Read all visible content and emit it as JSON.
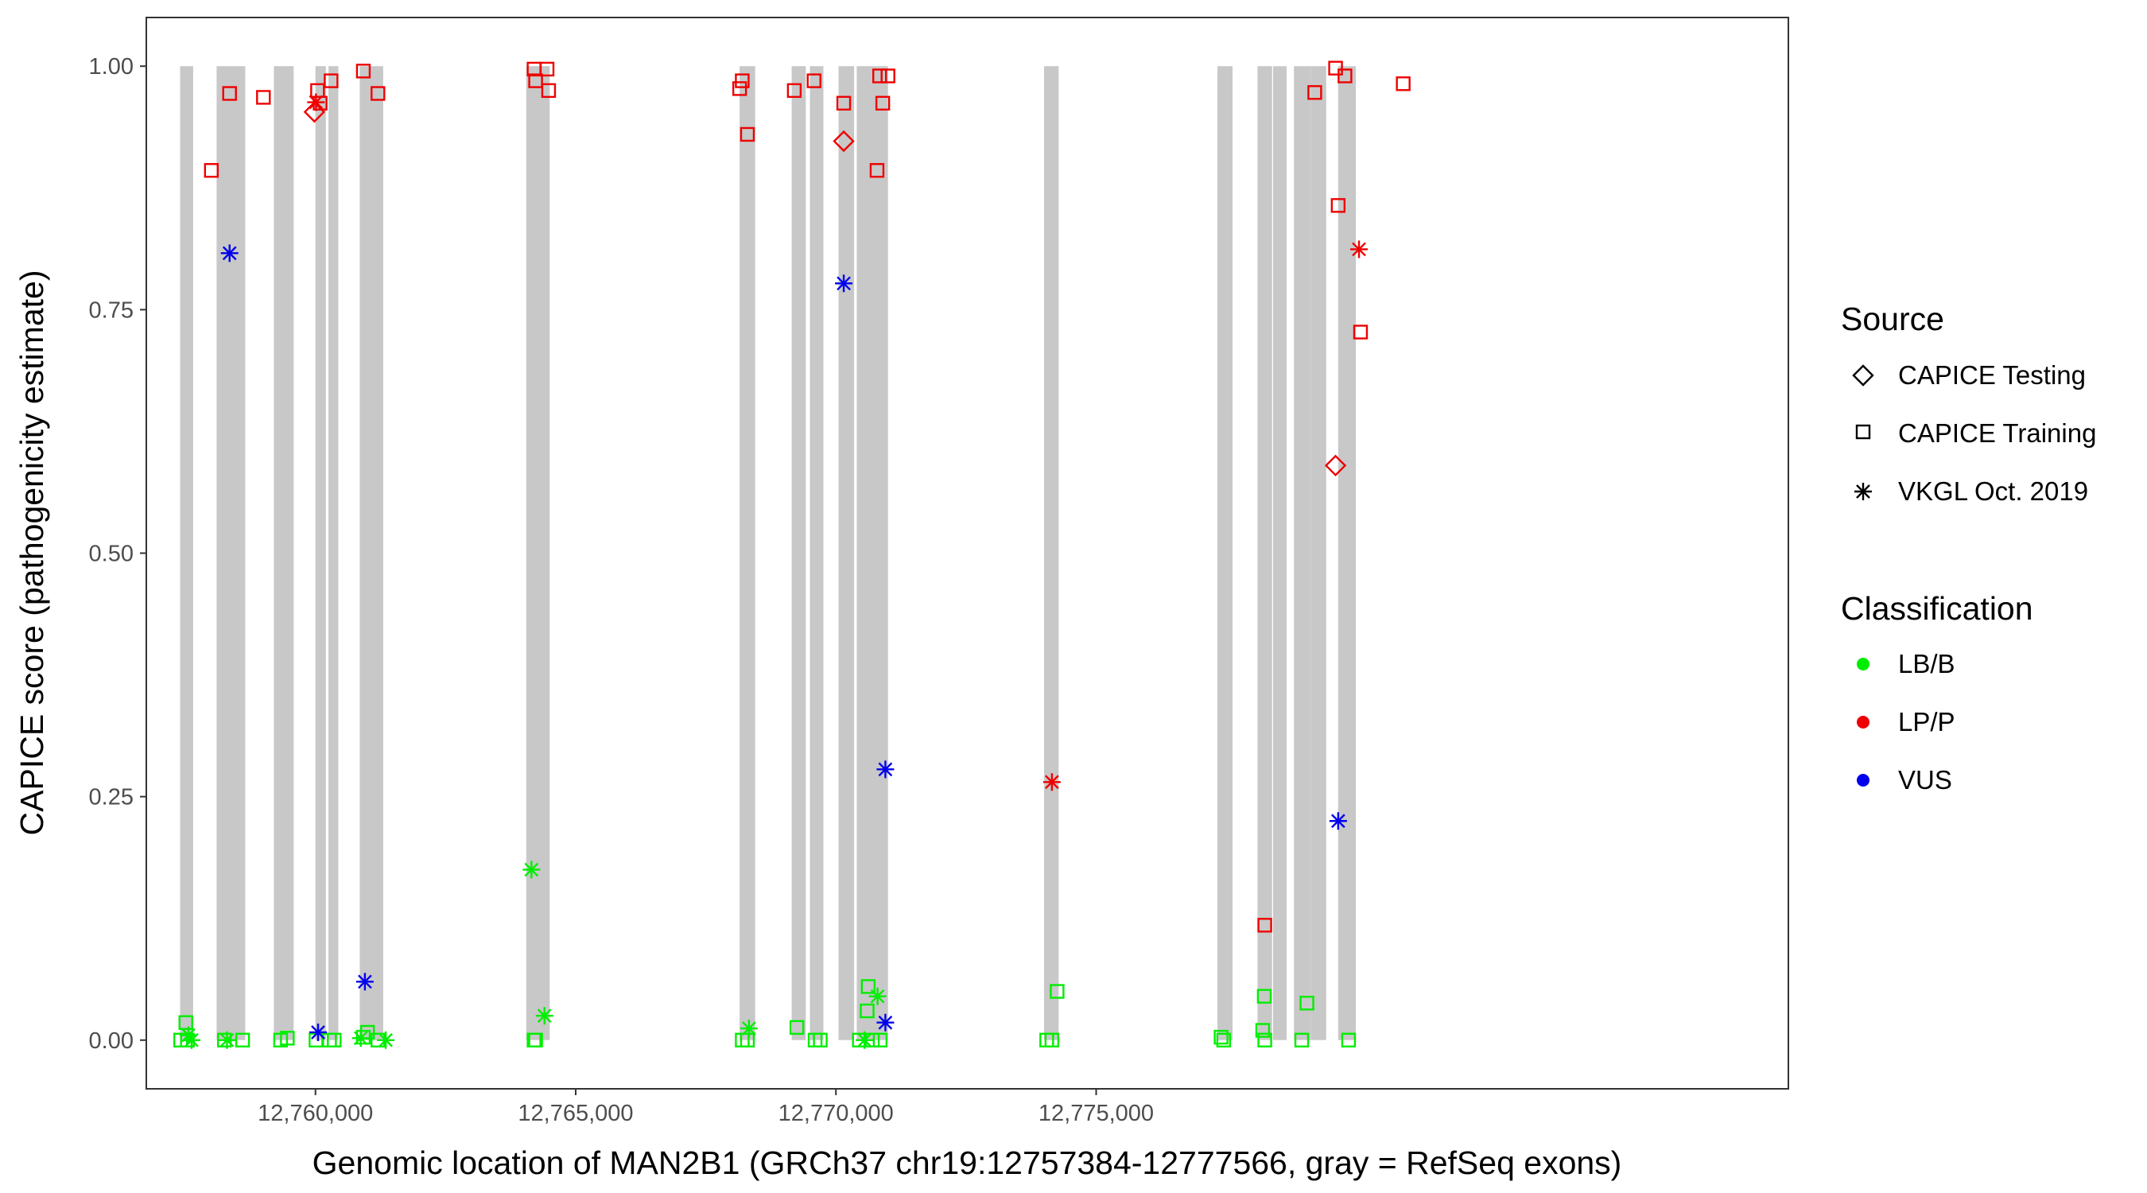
{
  "chart_data": {
    "type": "scatter",
    "title": "",
    "xlabel": "Genomic location of MAN2B1 (GRCh37 chr19:12757384-12777566, gray = RefSeq exons)",
    "ylabel": "CAPICE score (pathogenicity estimate)",
    "xlim": [
      12756750,
      12788300
    ],
    "ylim": [
      -0.05,
      1.05
    ],
    "x_ticks": [
      12760000,
      12765000,
      12770000,
      12775000
    ],
    "x_tick_labels": [
      "12,760,000",
      "12,765,000",
      "12,770,000",
      "12,775,000"
    ],
    "y_ticks": [
      0,
      0.25,
      0.5,
      0.75,
      1.0
    ],
    "y_tick_labels": [
      "0.00",
      "0.25",
      "0.50",
      "0.75",
      "1.00"
    ],
    "grid": false,
    "exons": [
      [
        12757400,
        12757650
      ],
      [
        12758100,
        12758650
      ],
      [
        12759200,
        12759580
      ],
      [
        12760000,
        12760200
      ],
      [
        12760250,
        12760440
      ],
      [
        12760850,
        12761300
      ],
      [
        12764050,
        12764500
      ],
      [
        12768150,
        12768450
      ],
      [
        12769150,
        12769420
      ],
      [
        12769500,
        12769760
      ],
      [
        12770050,
        12770350
      ],
      [
        12770400,
        12771000
      ],
      [
        12774000,
        12774280
      ],
      [
        12777330,
        12777620
      ],
      [
        12778100,
        12778380
      ],
      [
        12778400,
        12778660
      ],
      [
        12778800,
        12779120
      ],
      [
        12779120,
        12779420
      ],
      [
        12779650,
        12779990
      ]
    ],
    "legend": {
      "placement": "right",
      "source_title": "Source",
      "source_entries": [
        {
          "label": "CAPICE Testing",
          "shape": "diamond"
        },
        {
          "label": "CAPICE Training",
          "shape": "square"
        },
        {
          "label": "VKGL Oct. 2019",
          "shape": "asterisk"
        }
      ],
      "class_title": "Classification",
      "class_entries": [
        {
          "label": "LB/B",
          "color": "#00ee00"
        },
        {
          "label": "LP/P",
          "color": "#ee0000"
        },
        {
          "label": "VUS",
          "color": "#0000ee"
        }
      ]
    },
    "series": [
      {
        "name": "LB/B",
        "color": "#00ee00",
        "points": [
          {
            "x": 12757410,
            "y": 0.0,
            "shape": "square"
          },
          {
            "x": 12757510,
            "y": 0.018,
            "shape": "square"
          },
          {
            "x": 12757540,
            "y": 0.0,
            "shape": "square"
          },
          {
            "x": 12757560,
            "y": 0.005,
            "shape": "asterisk"
          },
          {
            "x": 12757620,
            "y": 0.0,
            "shape": "asterisk"
          },
          {
            "x": 12758250,
            "y": 0.0,
            "shape": "square"
          },
          {
            "x": 12758300,
            "y": 0.0,
            "shape": "asterisk"
          },
          {
            "x": 12758600,
            "y": 0.0,
            "shape": "square"
          },
          {
            "x": 12759330,
            "y": 0.0,
            "shape": "square"
          },
          {
            "x": 12759460,
            "y": 0.002,
            "shape": "square"
          },
          {
            "x": 12760010,
            "y": 0.0,
            "shape": "square"
          },
          {
            "x": 12760270,
            "y": 0.0,
            "shape": "square"
          },
          {
            "x": 12760360,
            "y": 0.0,
            "shape": "square"
          },
          {
            "x": 12760870,
            "y": 0.002,
            "shape": "asterisk"
          },
          {
            "x": 12760920,
            "y": 0.003,
            "shape": "square"
          },
          {
            "x": 12761000,
            "y": 0.008,
            "shape": "square"
          },
          {
            "x": 12761200,
            "y": 0.0,
            "shape": "square"
          },
          {
            "x": 12761350,
            "y": 0.0,
            "shape": "asterisk"
          },
          {
            "x": 12764150,
            "y": 0.175,
            "shape": "asterisk"
          },
          {
            "x": 12764200,
            "y": 0.0,
            "shape": "square"
          },
          {
            "x": 12764230,
            "y": 0.0,
            "shape": "square"
          },
          {
            "x": 12764400,
            "y": 0.025,
            "shape": "asterisk"
          },
          {
            "x": 12768200,
            "y": 0.0,
            "shape": "square"
          },
          {
            "x": 12768300,
            "y": 0.0,
            "shape": "square"
          },
          {
            "x": 12768330,
            "y": 0.012,
            "shape": "asterisk"
          },
          {
            "x": 12769250,
            "y": 0.013,
            "shape": "square"
          },
          {
            "x": 12769600,
            "y": 0.0,
            "shape": "square"
          },
          {
            "x": 12769700,
            "y": 0.0,
            "shape": "square"
          },
          {
            "x": 12770450,
            "y": 0.0,
            "shape": "square"
          },
          {
            "x": 12770550,
            "y": 0.0,
            "shape": "asterisk"
          },
          {
            "x": 12770600,
            "y": 0.03,
            "shape": "square"
          },
          {
            "x": 12770620,
            "y": 0.055,
            "shape": "square"
          },
          {
            "x": 12770700,
            "y": 0.0,
            "shape": "square"
          },
          {
            "x": 12770800,
            "y": 0.045,
            "shape": "asterisk"
          },
          {
            "x": 12770850,
            "y": 0.0,
            "shape": "square"
          },
          {
            "x": 12774050,
            "y": 0.0,
            "shape": "square"
          },
          {
            "x": 12774150,
            "y": 0.0,
            "shape": "square"
          },
          {
            "x": 12774250,
            "y": 0.05,
            "shape": "square"
          },
          {
            "x": 12777400,
            "y": 0.003,
            "shape": "square"
          },
          {
            "x": 12777450,
            "y": 0.0,
            "shape": "square"
          },
          {
            "x": 12778200,
            "y": 0.01,
            "shape": "square"
          },
          {
            "x": 12778230,
            "y": 0.045,
            "shape": "square"
          },
          {
            "x": 12778240,
            "y": 0.0,
            "shape": "square"
          },
          {
            "x": 12778950,
            "y": 0.0,
            "shape": "square"
          },
          {
            "x": 12779050,
            "y": 0.038,
            "shape": "square"
          },
          {
            "x": 12779850,
            "y": 0.0,
            "shape": "square"
          }
        ]
      },
      {
        "name": "LP/P",
        "color": "#ee0000",
        "points": [
          {
            "x": 12758000,
            "y": 0.893,
            "shape": "square"
          },
          {
            "x": 12758350,
            "y": 0.972,
            "shape": "square"
          },
          {
            "x": 12759000,
            "y": 0.968,
            "shape": "square"
          },
          {
            "x": 12759980,
            "y": 0.953,
            "shape": "diamond"
          },
          {
            "x": 12760010,
            "y": 0.963,
            "shape": "asterisk"
          },
          {
            "x": 12760040,
            "y": 0.975,
            "shape": "square"
          },
          {
            "x": 12760090,
            "y": 0.962,
            "shape": "square"
          },
          {
            "x": 12760300,
            "y": 0.985,
            "shape": "square"
          },
          {
            "x": 12760920,
            "y": 0.995,
            "shape": "square"
          },
          {
            "x": 12761200,
            "y": 0.972,
            "shape": "square"
          },
          {
            "x": 12764200,
            "y": 0.997,
            "shape": "square"
          },
          {
            "x": 12764230,
            "y": 0.985,
            "shape": "square"
          },
          {
            "x": 12764450,
            "y": 0.997,
            "shape": "square"
          },
          {
            "x": 12764480,
            "y": 0.975,
            "shape": "square"
          },
          {
            "x": 12768150,
            "y": 0.977,
            "shape": "square"
          },
          {
            "x": 12768200,
            "y": 0.985,
            "shape": "square"
          },
          {
            "x": 12768300,
            "y": 0.93,
            "shape": "square"
          },
          {
            "x": 12769200,
            "y": 0.975,
            "shape": "square"
          },
          {
            "x": 12769580,
            "y": 0.985,
            "shape": "square"
          },
          {
            "x": 12770150,
            "y": 0.962,
            "shape": "square"
          },
          {
            "x": 12770150,
            "y": 0.923,
            "shape": "diamond"
          },
          {
            "x": 12770790,
            "y": 0.893,
            "shape": "square"
          },
          {
            "x": 12770840,
            "y": 0.99,
            "shape": "square"
          },
          {
            "x": 12770900,
            "y": 0.962,
            "shape": "square"
          },
          {
            "x": 12771000,
            "y": 0.99,
            "shape": "square"
          },
          {
            "x": 12774150,
            "y": 0.265,
            "shape": "asterisk"
          },
          {
            "x": 12778240,
            "y": 0.118,
            "shape": "square"
          },
          {
            "x": 12779200,
            "y": 0.973,
            "shape": "square"
          },
          {
            "x": 12779600,
            "y": 0.998,
            "shape": "square"
          },
          {
            "x": 12779600,
            "y": 0.59,
            "shape": "diamond"
          },
          {
            "x": 12779650,
            "y": 0.857,
            "shape": "square"
          },
          {
            "x": 12779780,
            "y": 0.99,
            "shape": "square"
          },
          {
            "x": 12780050,
            "y": 0.812,
            "shape": "asterisk"
          },
          {
            "x": 12780080,
            "y": 0.727,
            "shape": "square"
          },
          {
            "x": 12780900,
            "y": 0.982,
            "shape": "square"
          }
        ]
      },
      {
        "name": "VUS",
        "color": "#0000ee",
        "points": [
          {
            "x": 12758350,
            "y": 0.808,
            "shape": "asterisk"
          },
          {
            "x": 12760050,
            "y": 0.008,
            "shape": "asterisk"
          },
          {
            "x": 12760950,
            "y": 0.06,
            "shape": "asterisk"
          },
          {
            "x": 12770150,
            "y": 0.777,
            "shape": "asterisk"
          },
          {
            "x": 12770950,
            "y": 0.278,
            "shape": "asterisk"
          },
          {
            "x": 12770950,
            "y": 0.018,
            "shape": "asterisk"
          },
          {
            "x": 12779650,
            "y": 0.225,
            "shape": "asterisk"
          }
        ]
      }
    ]
  }
}
